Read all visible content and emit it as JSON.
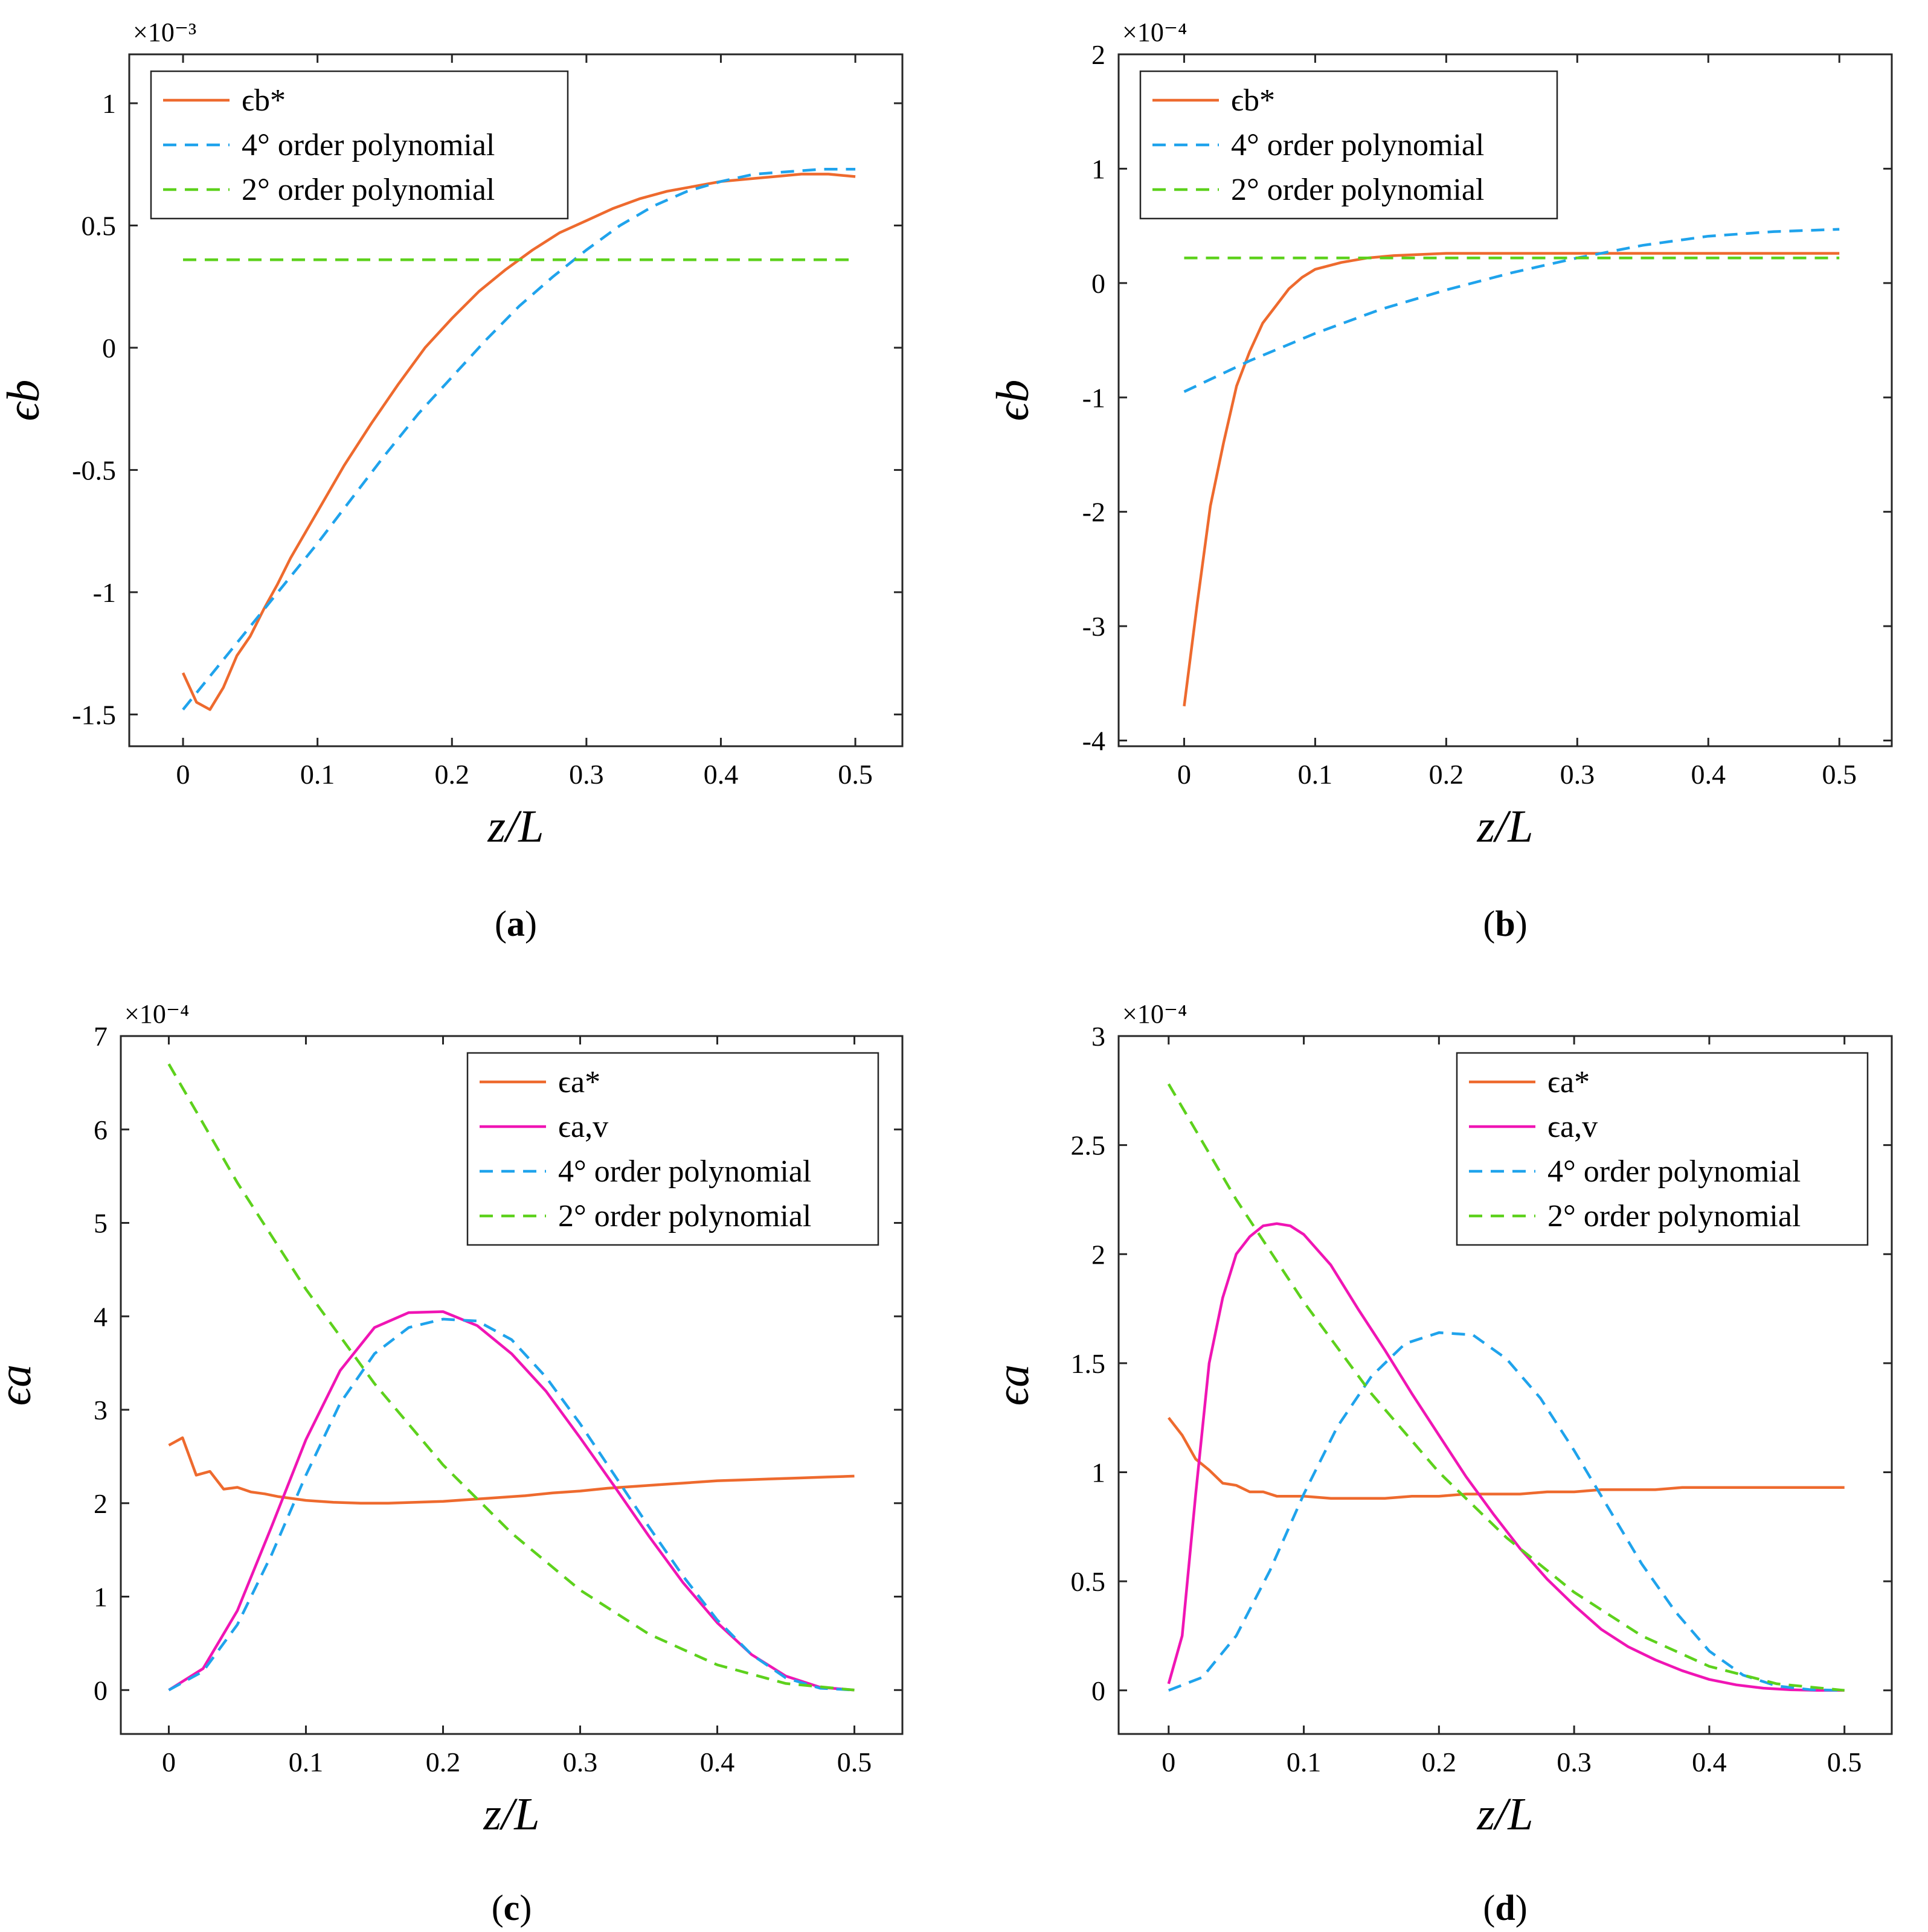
{
  "chart_data": [
    {
      "id": "a",
      "type": "line",
      "caption": "a",
      "xlabel": "z/L",
      "ylabel": "ϵb",
      "exponent": "×10⁻³",
      "xlim": [
        -0.04,
        0.535
      ],
      "ylim": [
        -1.63,
        1.2
      ],
      "xticks": [
        0,
        0.1,
        0.2,
        0.3,
        0.4,
        0.5
      ],
      "xticklabels": [
        "0",
        "0.1",
        "0.2",
        "0.3",
        "0.4",
        "0.5"
      ],
      "yticks": [
        -1.5,
        -1,
        -0.5,
        0,
        0.5,
        1
      ],
      "yticklabels": [
        "-1.5",
        "-1",
        "-0.5",
        "0",
        "0.5",
        "1"
      ],
      "legend_position": "top-left",
      "series": [
        {
          "name": "ϵb*",
          "style": "solid",
          "color": "#EE6A2E",
          "x": [
            0,
            0.01,
            0.02,
            0.03,
            0.04,
            0.05,
            0.06,
            0.07,
            0.08,
            0.1,
            0.12,
            0.14,
            0.16,
            0.18,
            0.2,
            0.22,
            0.24,
            0.26,
            0.28,
            0.3,
            0.32,
            0.34,
            0.36,
            0.38,
            0.4,
            0.42,
            0.44,
            0.46,
            0.48,
            0.5
          ],
          "y": [
            -1.33,
            -1.45,
            -1.48,
            -1.39,
            -1.26,
            -1.18,
            -1.07,
            -0.97,
            -0.86,
            -0.67,
            -0.48,
            -0.31,
            -0.15,
            0.0,
            0.12,
            0.23,
            0.32,
            0.4,
            0.47,
            0.52,
            0.57,
            0.61,
            0.64,
            0.66,
            0.68,
            0.69,
            0.7,
            0.71,
            0.71,
            0.7
          ]
        },
        {
          "name": "4° order polynomial",
          "style": "dashed",
          "color": "#1FA3EC",
          "x": [
            0,
            0.025,
            0.05,
            0.075,
            0.1,
            0.125,
            0.15,
            0.175,
            0.2,
            0.225,
            0.25,
            0.275,
            0.3,
            0.325,
            0.35,
            0.375,
            0.4,
            0.425,
            0.45,
            0.475,
            0.5
          ],
          "y": [
            -1.48,
            -1.31,
            -1.14,
            -0.97,
            -0.8,
            -0.62,
            -0.44,
            -0.27,
            -0.12,
            0.03,
            0.17,
            0.29,
            0.4,
            0.5,
            0.58,
            0.64,
            0.68,
            0.71,
            0.72,
            0.73,
            0.73
          ]
        },
        {
          "name": "2° order polynomial",
          "style": "dashed",
          "color": "#5DD11C",
          "x": [
            0,
            0.5
          ],
          "y": [
            0.36,
            0.36
          ]
        }
      ]
    },
    {
      "id": "b",
      "type": "line",
      "caption": "b",
      "xlabel": "z/L",
      "ylabel": "ϵb",
      "exponent": "×10⁻⁴",
      "xlim": [
        -0.05,
        0.54
      ],
      "ylim": [
        -4.05,
        2.0
      ],
      "xticks": [
        0,
        0.1,
        0.2,
        0.3,
        0.4,
        0.5
      ],
      "xticklabels": [
        "0",
        "0.1",
        "0.2",
        "0.3",
        "0.4",
        "0.5"
      ],
      "yticks": [
        -4,
        -3,
        -2,
        -1,
        0,
        1,
        2
      ],
      "yticklabels": [
        "-4",
        "-3",
        "-2",
        "-1",
        "0",
        "1",
        "2"
      ],
      "legend_position": "top-left",
      "series": [
        {
          "name": "ϵb*",
          "style": "solid",
          "color": "#EE6A2E",
          "x": [
            0,
            0.01,
            0.02,
            0.03,
            0.04,
            0.05,
            0.06,
            0.07,
            0.08,
            0.09,
            0.1,
            0.12,
            0.14,
            0.16,
            0.18,
            0.2,
            0.25,
            0.3,
            0.35,
            0.4,
            0.45,
            0.5
          ],
          "y": [
            -3.7,
            -2.8,
            -1.95,
            -1.4,
            -0.9,
            -0.6,
            -0.35,
            -0.2,
            -0.05,
            0.05,
            0.12,
            0.18,
            0.22,
            0.24,
            0.25,
            0.26,
            0.26,
            0.26,
            0.26,
            0.26,
            0.26,
            0.26
          ]
        },
        {
          "name": "4° order polynomial",
          "style": "dashed",
          "color": "#1FA3EC",
          "x": [
            0,
            0.05,
            0.1,
            0.15,
            0.2,
            0.25,
            0.3,
            0.35,
            0.4,
            0.45,
            0.5
          ],
          "y": [
            -0.95,
            -0.68,
            -0.44,
            -0.23,
            -0.06,
            0.09,
            0.22,
            0.33,
            0.41,
            0.45,
            0.47
          ]
        },
        {
          "name": "2° order polynomial",
          "style": "dashed",
          "color": "#5DD11C",
          "x": [
            0,
            0.5
          ],
          "y": [
            0.22,
            0.22
          ]
        }
      ]
    },
    {
      "id": "c",
      "type": "line",
      "caption": "c",
      "xlabel": "z/L",
      "ylabel": "ϵa",
      "exponent": "×10⁻⁴",
      "xlim": [
        -0.035,
        0.535
      ],
      "ylim": [
        -0.47,
        7.0
      ],
      "xticks": [
        0,
        0.1,
        0.2,
        0.3,
        0.4,
        0.5
      ],
      "xticklabels": [
        "0",
        "0.1",
        "0.2",
        "0.3",
        "0.4",
        "0.5"
      ],
      "yticks": [
        0,
        1,
        2,
        3,
        4,
        5,
        6,
        7
      ],
      "yticklabels": [
        "0",
        "1",
        "2",
        "3",
        "4",
        "5",
        "6",
        "7"
      ],
      "legend_position": "top-right",
      "series": [
        {
          "name": "ϵa*",
          "style": "solid",
          "color": "#EE6A2E",
          "x": [
            0,
            0.01,
            0.02,
            0.03,
            0.04,
            0.05,
            0.06,
            0.07,
            0.08,
            0.1,
            0.12,
            0.14,
            0.16,
            0.18,
            0.2,
            0.22,
            0.24,
            0.26,
            0.28,
            0.3,
            0.32,
            0.34,
            0.36,
            0.38,
            0.4,
            0.42,
            0.44,
            0.46,
            0.48,
            0.5
          ],
          "y": [
            2.62,
            2.7,
            2.3,
            2.34,
            2.15,
            2.17,
            2.12,
            2.1,
            2.07,
            2.03,
            2.01,
            2.0,
            2.0,
            2.01,
            2.02,
            2.04,
            2.06,
            2.08,
            2.11,
            2.13,
            2.16,
            2.18,
            2.2,
            2.22,
            2.24,
            2.25,
            2.26,
            2.27,
            2.28,
            2.29
          ]
        },
        {
          "name": "ϵa,v",
          "style": "solid",
          "color": "#F015B4",
          "x": [
            0,
            0.025,
            0.05,
            0.075,
            0.1,
            0.125,
            0.15,
            0.175,
            0.2,
            0.225,
            0.25,
            0.275,
            0.3,
            0.325,
            0.35,
            0.375,
            0.4,
            0.425,
            0.45,
            0.475,
            0.5
          ],
          "y": [
            0,
            0.23,
            0.85,
            1.75,
            2.68,
            3.42,
            3.88,
            4.04,
            4.05,
            3.9,
            3.6,
            3.2,
            2.7,
            2.18,
            1.65,
            1.15,
            0.72,
            0.38,
            0.15,
            0.03,
            0
          ]
        },
        {
          "name": "4° order polynomial",
          "style": "dashed",
          "color": "#1FA3EC",
          "x": [
            0,
            0.025,
            0.05,
            0.075,
            0.1,
            0.125,
            0.15,
            0.175,
            0.2,
            0.225,
            0.25,
            0.275,
            0.3,
            0.325,
            0.35,
            0.375,
            0.4,
            0.425,
            0.45,
            0.475,
            0.5
          ],
          "y": [
            0,
            0.2,
            0.7,
            1.45,
            2.3,
            3.07,
            3.6,
            3.88,
            3.97,
            3.95,
            3.75,
            3.35,
            2.85,
            2.3,
            1.75,
            1.22,
            0.75,
            0.38,
            0.13,
            0.02,
            0
          ]
        },
        {
          "name": "2° order polynomial",
          "style": "dashed",
          "color": "#5DD11C",
          "x": [
            0,
            0.05,
            0.1,
            0.15,
            0.2,
            0.25,
            0.3,
            0.35,
            0.4,
            0.45,
            0.5
          ],
          "y": [
            6.7,
            5.43,
            4.29,
            3.28,
            2.41,
            1.68,
            1.07,
            0.6,
            0.27,
            0.07,
            0
          ]
        }
      ]
    },
    {
      "id": "d",
      "type": "line",
      "caption": "d",
      "xlabel": "z/L",
      "ylabel": "ϵa",
      "exponent": "×10⁻⁴",
      "xlim": [
        -0.037,
        0.535
      ],
      "ylim": [
        -0.2,
        3.0
      ],
      "xticks": [
        0,
        0.1,
        0.2,
        0.3,
        0.4,
        0.5
      ],
      "xticklabels": [
        "0",
        "0.1",
        "0.2",
        "0.3",
        "0.4",
        "0.5"
      ],
      "yticks": [
        0,
        0.5,
        1,
        1.5,
        2,
        2.5,
        3
      ],
      "yticklabels": [
        "0",
        "0.5",
        "1",
        "1.5",
        "2",
        "2.5",
        "3"
      ],
      "legend_position": "top-right",
      "series": [
        {
          "name": "ϵa*",
          "style": "solid",
          "color": "#EE6A2E",
          "x": [
            0,
            0.01,
            0.02,
            0.03,
            0.04,
            0.05,
            0.06,
            0.07,
            0.08,
            0.1,
            0.12,
            0.14,
            0.16,
            0.18,
            0.2,
            0.22,
            0.24,
            0.26,
            0.28,
            0.3,
            0.32,
            0.34,
            0.36,
            0.38,
            0.4,
            0.42,
            0.44,
            0.46,
            0.48,
            0.5
          ],
          "y": [
            1.25,
            1.17,
            1.06,
            1.01,
            0.95,
            0.94,
            0.91,
            0.91,
            0.89,
            0.89,
            0.88,
            0.88,
            0.88,
            0.89,
            0.89,
            0.9,
            0.9,
            0.9,
            0.91,
            0.91,
            0.92,
            0.92,
            0.92,
            0.93,
            0.93,
            0.93,
            0.93,
            0.93,
            0.93,
            0.93
          ]
        },
        {
          "name": "ϵa,v",
          "style": "solid",
          "color": "#F015B4",
          "x": [
            0,
            0.01,
            0.02,
            0.03,
            0.04,
            0.05,
            0.06,
            0.07,
            0.08,
            0.09,
            0.1,
            0.12,
            0.14,
            0.16,
            0.18,
            0.2,
            0.22,
            0.24,
            0.26,
            0.28,
            0.3,
            0.32,
            0.34,
            0.36,
            0.38,
            0.4,
            0.42,
            0.44,
            0.46,
            0.48,
            0.5
          ],
          "y": [
            0.03,
            0.25,
            0.9,
            1.5,
            1.8,
            2.0,
            2.08,
            2.13,
            2.14,
            2.13,
            2.09,
            1.95,
            1.75,
            1.56,
            1.36,
            1.17,
            0.98,
            0.81,
            0.65,
            0.51,
            0.39,
            0.28,
            0.2,
            0.14,
            0.09,
            0.05,
            0.025,
            0.01,
            0.003,
            0,
            0
          ]
        },
        {
          "name": "4° order polynomial",
          "style": "dashed",
          "color": "#1FA3EC",
          "x": [
            0,
            0.025,
            0.05,
            0.075,
            0.1,
            0.125,
            0.15,
            0.175,
            0.2,
            0.225,
            0.25,
            0.275,
            0.3,
            0.325,
            0.35,
            0.375,
            0.4,
            0.425,
            0.45,
            0.475,
            0.5
          ],
          "y": [
            0,
            0.06,
            0.25,
            0.55,
            0.9,
            1.21,
            1.44,
            1.59,
            1.64,
            1.63,
            1.52,
            1.34,
            1.1,
            0.84,
            0.58,
            0.36,
            0.18,
            0.07,
            0.02,
            0.003,
            0
          ]
        },
        {
          "name": "2° order polynomial",
          "style": "dashed",
          "color": "#5DD11C",
          "x": [
            0,
            0.05,
            0.1,
            0.15,
            0.2,
            0.25,
            0.3,
            0.35,
            0.4,
            0.45,
            0.5
          ],
          "y": [
            2.78,
            2.25,
            1.78,
            1.36,
            1.0,
            0.7,
            0.45,
            0.25,
            0.11,
            0.03,
            0
          ]
        }
      ]
    }
  ]
}
